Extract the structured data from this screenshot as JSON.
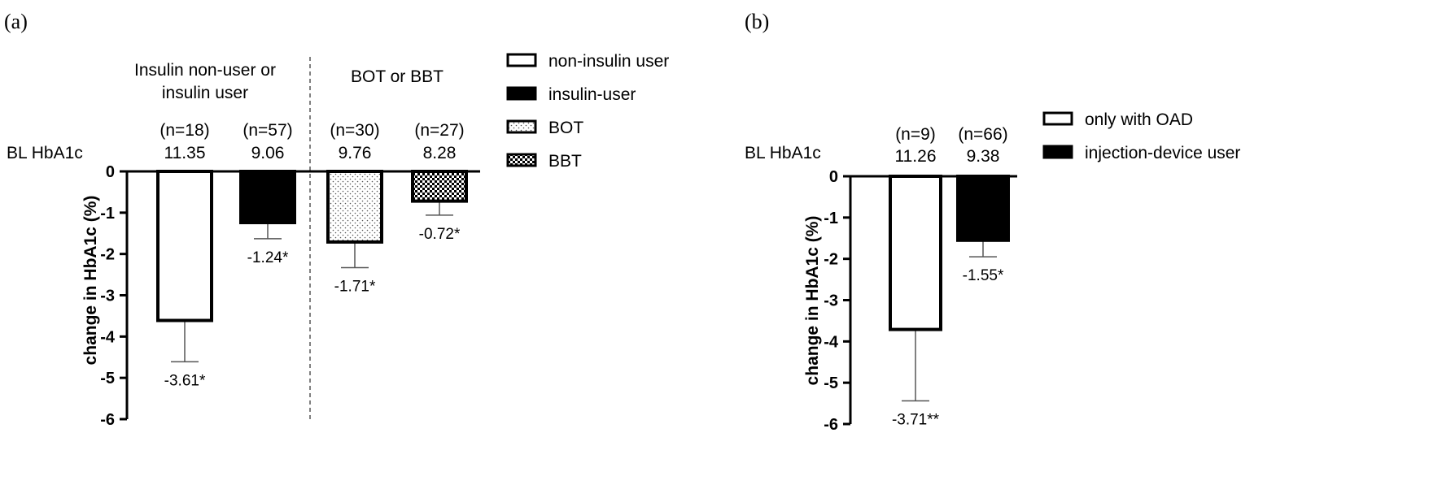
{
  "chart_data": [
    {
      "type": "bar",
      "panel_label": "(a)",
      "ylabel": "change in HbA1c (%)",
      "ylim": [
        -6,
        0
      ],
      "yticks": [
        "0",
        "-1",
        "-2",
        "-3",
        "-4",
        "-5",
        "-6"
      ],
      "baseline_label": "BL HbA1c",
      "groups": [
        {
          "title_lines": [
            "Insulin non-user or",
            "insulin user"
          ]
        },
        {
          "title_lines": [
            "BOT or BBT"
          ]
        }
      ],
      "legend": [
        "non-insulin user",
        "insulin-user",
        "BOT",
        "BBT"
      ],
      "bars": [
        {
          "series": "non-insulin user",
          "n_label": "(n=18)",
          "baseline": "11.35",
          "value": -3.61,
          "error": 1.0,
          "label": "-3.61*"
        },
        {
          "series": "insulin-user",
          "n_label": "(n=57)",
          "baseline": "9.06",
          "value": -1.24,
          "error": 0.39,
          "label": "-1.24*"
        },
        {
          "series": "BOT",
          "n_label": "(n=30)",
          "baseline": "9.76",
          "value": -1.71,
          "error": 0.62,
          "label": "-1.71*"
        },
        {
          "series": "BBT",
          "n_label": "(n=27)",
          "baseline": "8.28",
          "value": -0.72,
          "error": 0.34,
          "label": "-0.72*"
        }
      ]
    },
    {
      "type": "bar",
      "panel_label": "(b)",
      "ylabel": "change in HbA1c (%)",
      "ylim": [
        -6,
        0
      ],
      "yticks": [
        "0",
        "-1",
        "-2",
        "-3",
        "-4",
        "-5",
        "-6"
      ],
      "baseline_label": "BL HbA1c",
      "legend": [
        "only with OAD",
        "injection-device user"
      ],
      "bars": [
        {
          "series": "only with OAD",
          "n_label": "(n=9)",
          "baseline": "11.26",
          "value": -3.71,
          "error": 1.73,
          "label": "-3.71**"
        },
        {
          "series": "injection-device user",
          "n_label": "(n=66)",
          "baseline": "9.38",
          "value": -1.55,
          "error": 0.4,
          "label": "-1.55*"
        }
      ]
    }
  ]
}
